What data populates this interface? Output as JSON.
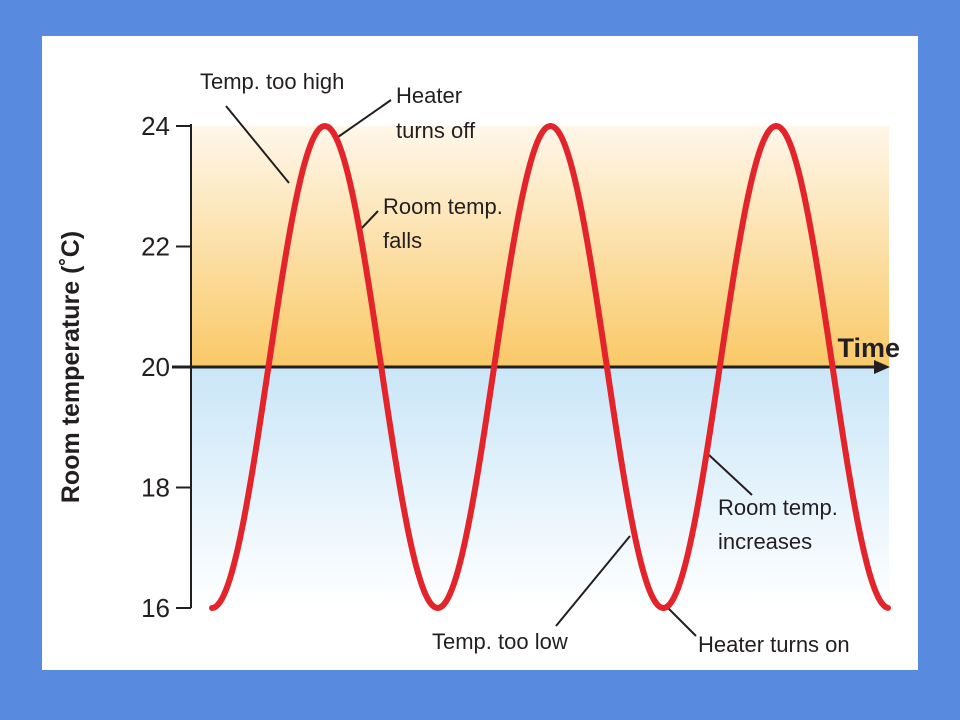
{
  "colors": {
    "page_background": "#588ae0",
    "curve": "#e3242b",
    "warm_zone_top": "#fff7ea",
    "warm_zone_bottom": "#f9c967",
    "cool_zone_top": "#c9e6f8",
    "cool_zone_bottom": "#ffffff",
    "axis": "#231f20"
  },
  "chart_data": {
    "type": "line",
    "ylabel": "Room temperature (˚C)",
    "xlabel": "Time",
    "ylim": [
      16,
      24
    ],
    "yticks": [
      16,
      18,
      20,
      22,
      24
    ],
    "x_axis_crosses_at": 20,
    "grid": false,
    "legend": "none",
    "series": [
      {
        "shape": "sinusoid",
        "mean": 20,
        "amplitude": 4,
        "cycles": 3,
        "start": "minimum",
        "end": "minimum",
        "peaks": [
          24,
          24,
          24
        ],
        "troughs": [
          16,
          16,
          16,
          16
        ]
      }
    ],
    "annotations": [
      {
        "id": "temp-too-high",
        "lines": [
          "Temp. too high"
        ]
      },
      {
        "id": "heater-turns-off",
        "lines": [
          "Heater",
          "turns off"
        ]
      },
      {
        "id": "room-temp-falls",
        "lines": [
          "Room temp.",
          "falls"
        ]
      },
      {
        "id": "room-temp-increases",
        "lines": [
          "Room temp.",
          "increases"
        ]
      },
      {
        "id": "temp-too-low",
        "lines": [
          "Temp. too low"
        ]
      },
      {
        "id": "heater-turns-on",
        "lines": [
          "Heater turns on"
        ]
      }
    ]
  }
}
